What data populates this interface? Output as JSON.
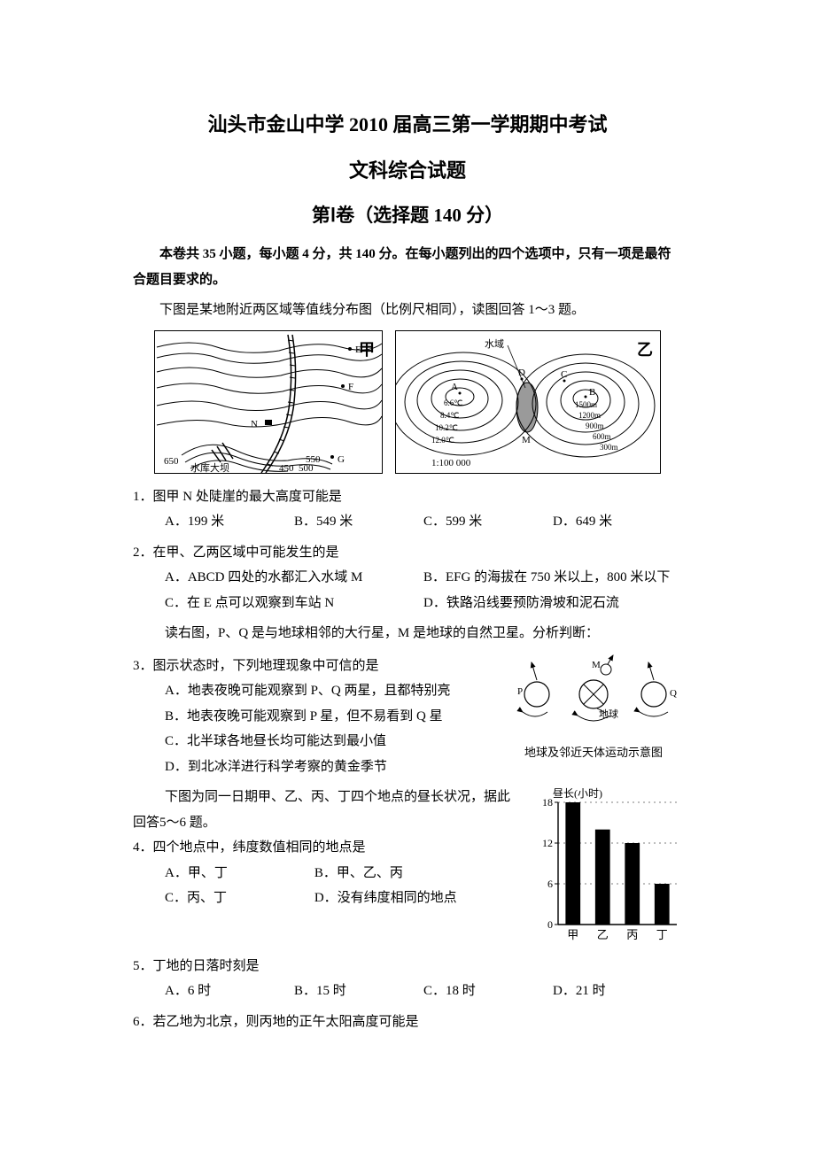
{
  "titles": {
    "main": "汕头市金山中学 2010 届高三第一学期期中考试",
    "sub": "文科综合试题",
    "section": "第Ⅰ卷（选择题 140 分）"
  },
  "instruction": "本卷共 35 小题，每小题 4 分，共 140 分。在每小题列出的四个选项中，只有一项是最符合题目要求的。",
  "intro_fig1": "下图是某地附近两区域等值线分布图（比例尺相同），读图回答 1～3 题。",
  "fig_jia": {
    "label": "甲",
    "contour_values": [
      "650",
      "550",
      "500",
      "450"
    ],
    "points": {
      "E": "E",
      "F": "F",
      "G": "G",
      "N": "N"
    },
    "dam_label": "水库大坝",
    "line_color": "#000000",
    "background": "#ffffff"
  },
  "fig_yi": {
    "label": "乙",
    "water_label": "水域",
    "point_M": "M",
    "temp_contours": [
      "6.6℃",
      "8.4℃",
      "10.2℃",
      "12.0℃"
    ],
    "point_A": "A",
    "point_D": "D",
    "point_C": "C",
    "point_B": "B",
    "elev_contours": [
      "1500m",
      "1200m",
      "900m",
      "600m",
      "300m"
    ],
    "scale": "1:100 000",
    "line_color": "#000000",
    "background": "#ffffff",
    "water_fill": "#9a9a9a"
  },
  "q1": {
    "stem": "1．图甲 N 处陡崖的最大高度可能是",
    "A": "A．199 米",
    "B": "B．549 米",
    "C": "C．599 米",
    "D": "D．649 米"
  },
  "q2": {
    "stem": "2．在甲、乙两区域中可能发生的是",
    "A": "A．ABCD 四处的水都汇入水域 M",
    "B": "B．EFG 的海拔在 750 米以上，800 米以下",
    "C": "C．在 E 点可以观察到车站 N",
    "D": "D．铁路沿线要预防滑坡和泥石流"
  },
  "intro_q3": "读右图，P、Q 是与地球相邻的大行星，M 是地球的自然卫星。分析判断：",
  "fig_planet": {
    "P": "P",
    "Q": "Q",
    "M": "M",
    "earth": "地球",
    "caption": "地球及邻近天体运动示意图",
    "line_color": "#000000"
  },
  "q3": {
    "stem": "3．图示状态时，下列地理现象中可信的是",
    "A": "A．地表夜晚可能观察到 P、Q 两星，且都特别亮",
    "B": "B．地表夜晚可能观察到 P 星，但不易看到 Q 星",
    "C": "C．北半球各地昼长均可能达到最小值",
    "D": "D．到北冰洋进行科学考察的黄金季节"
  },
  "intro_q4": "下图为同一日期甲、乙、丙、丁四个地点的昼长状况，据此回答5～6 题。",
  "fig_bar": {
    "type": "bar",
    "ylabel": "昼长(小时)",
    "ylim": [
      0,
      18
    ],
    "yticks": [
      0,
      6,
      12,
      18
    ],
    "categories": [
      "甲",
      "乙",
      "丙",
      "丁"
    ],
    "values": [
      18,
      14,
      12,
      6
    ],
    "bar_color": "#000000",
    "axis_color": "#000000",
    "grid_color": "#000000",
    "background": "#ffffff",
    "bar_width": 0.5,
    "label_fontsize": 12
  },
  "q4": {
    "stem": "4．四个地点中，纬度数值相同的地点是",
    "A": "A．甲、丁",
    "B": "B．甲、乙、丙",
    "C": "C．丙、丁",
    "D": "D．没有纬度相同的地点"
  },
  "q5": {
    "stem": "5．丁地的日落时刻是",
    "A": "A．6 时",
    "B": "B．15 时",
    "C": "C．18 时",
    "D": "D．21 时"
  },
  "q6": {
    "stem": "6．若乙地为北京，则丙地的正午太阳高度可能是"
  }
}
